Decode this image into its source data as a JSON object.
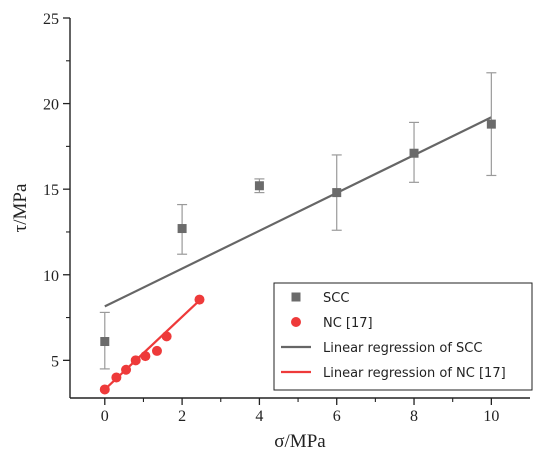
{
  "chart_data": {
    "type": "scatter",
    "title": "",
    "xlabel": "σ/MPa",
    "ylabel": "τ/MPa",
    "xlim": [
      -0.9,
      11.0
    ],
    "ylim": [
      2.8,
      25
    ],
    "x_ticks": [
      0,
      2,
      4,
      6,
      8,
      10
    ],
    "y_ticks": [
      5,
      10,
      15,
      20,
      25
    ],
    "x_tick_labels": [
      "0",
      "2",
      "4",
      "6",
      "8",
      "10"
    ],
    "y_tick_labels": [
      "5",
      "10",
      "15",
      "20",
      "25"
    ],
    "grid": false,
    "legend_position": "bottom-right",
    "series": [
      {
        "name": "SCC",
        "kind": "points",
        "marker": "square",
        "color": "#6b6b6b",
        "x": [
          0,
          2,
          4,
          6,
          8,
          10
        ],
        "y": [
          6.1,
          12.7,
          15.2,
          14.8,
          17.1,
          18.8
        ],
        "err_low": [
          4.5,
          11.2,
          14.8,
          12.6,
          15.4,
          15.8
        ],
        "err_high": [
          7.8,
          14.1,
          15.6,
          17.0,
          18.9,
          21.8
        ]
      },
      {
        "name": "NC [17]",
        "kind": "points",
        "marker": "circle",
        "color": "#ee3a3a",
        "x": [
          0,
          0.3,
          0.55,
          0.8,
          1.05,
          1.35,
          1.6,
          2.45
        ],
        "y": [
          3.3,
          4.0,
          4.45,
          5.0,
          5.25,
          5.55,
          6.4,
          8.55
        ]
      },
      {
        "name": "Linear regression of SCC",
        "kind": "line",
        "color": "#666666",
        "x": [
          0,
          10
        ],
        "y": [
          8.15,
          19.2
        ]
      },
      {
        "name": "Linear regression of NC [17]",
        "kind": "line",
        "color": "#ee3a3a",
        "x": [
          0,
          2.45
        ],
        "y": [
          3.3,
          8.5
        ]
      }
    ]
  }
}
